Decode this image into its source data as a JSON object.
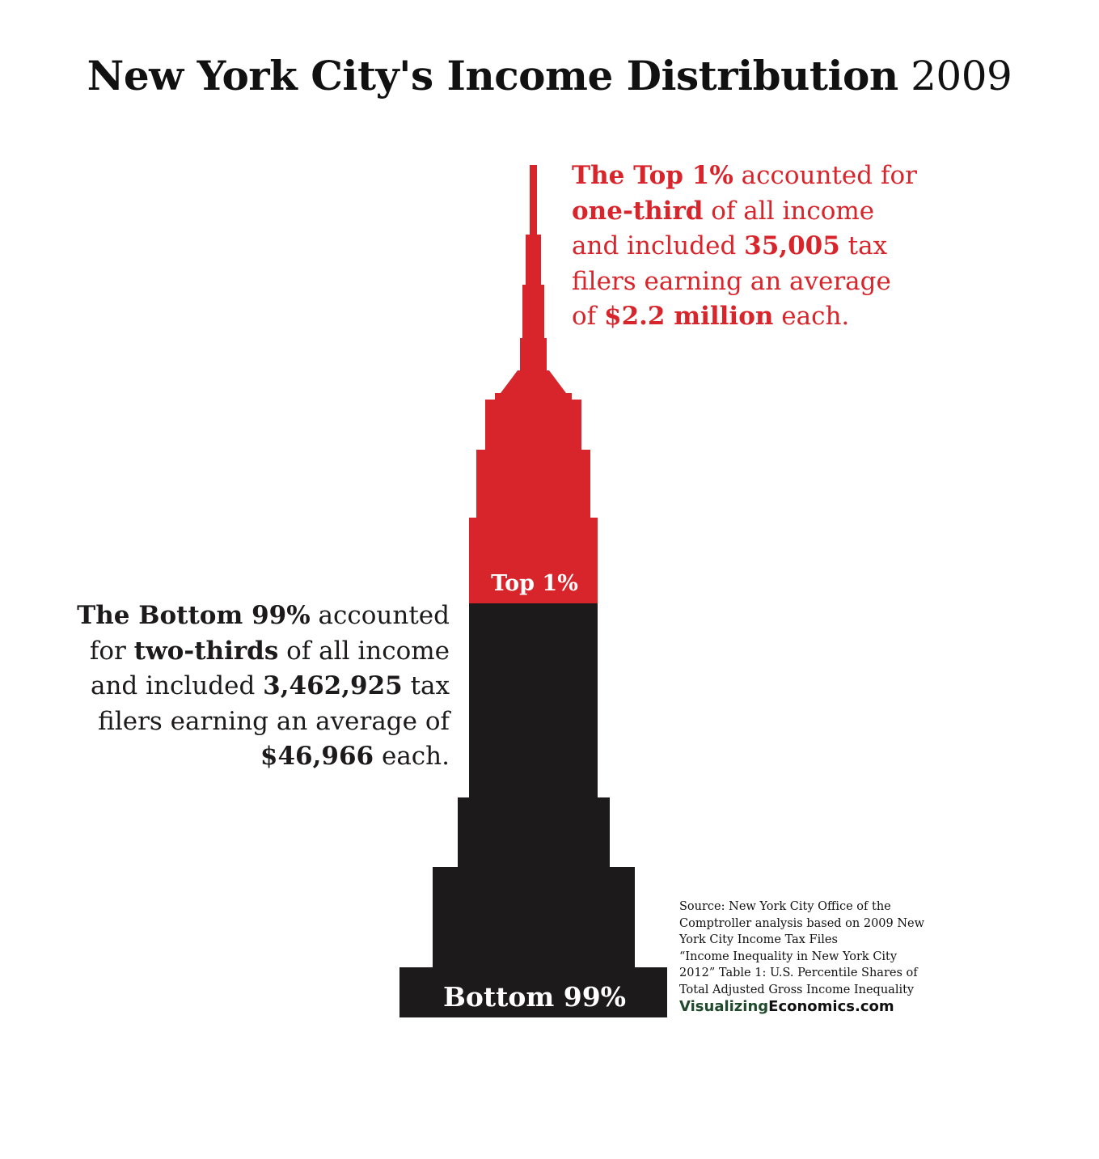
{
  "title": {
    "main": "New York City's Income Distribution",
    "year": "2009"
  },
  "colors": {
    "top": "#d7252b",
    "bottom": "#1c1a1a",
    "credit_green": "#1f4a2c"
  },
  "callout_top": {
    "p1_bold": "The Top 1%",
    "p1_text": " accounted for",
    "p2_bold": "one-third",
    "p2_text": " of all income",
    "p3_text": "and included ",
    "p3_bold": "35,005",
    "p3_text2": " tax",
    "p4_text": "filers earning an average",
    "p5_text": "of ",
    "p5_bold": "$2.2 million",
    "p5_text2": " each."
  },
  "callout_bottom": {
    "p1_bold": "The Bottom 99%",
    "p1_text": " accounted",
    "p2_text": "for ",
    "p2_bold": "two-thirds",
    "p2_text2": " of all income",
    "p3_text": "and included ",
    "p3_bold": "3,462,925",
    "p3_text2": " tax",
    "p4_text": "filers earning an average of",
    "p5_bold": "$46,966",
    "p5_text2": " each."
  },
  "source": {
    "lines": [
      "Source: New York City Office of the",
      "Comptroller analysis based on 2009 New",
      "York City Income Tax Files",
      "“Income Inequality in New York City",
      "2012”  Table 1: U.S. Percentile Shares of",
      "Total Adjusted Gross Income Inequality"
    ],
    "credit_part1": "Visualizing",
    "credit_part2": "Economics.com"
  },
  "chart_data": {
    "type": "bar",
    "title": "New York City's Income Distribution 2009",
    "categories": [
      "Top 1%",
      "Bottom 99%"
    ],
    "income_share": [
      0.3333,
      0.6667
    ],
    "share_labels": [
      "one-third",
      "two-thirds"
    ],
    "tax_filers": [
      35005,
      3462925
    ],
    "average_income": [
      2200000,
      46966
    ],
    "average_income_labels": [
      "$2.2 million",
      "$46,966"
    ],
    "segment_labels": [
      "Top 1%",
      "Bottom 99%"
    ]
  }
}
